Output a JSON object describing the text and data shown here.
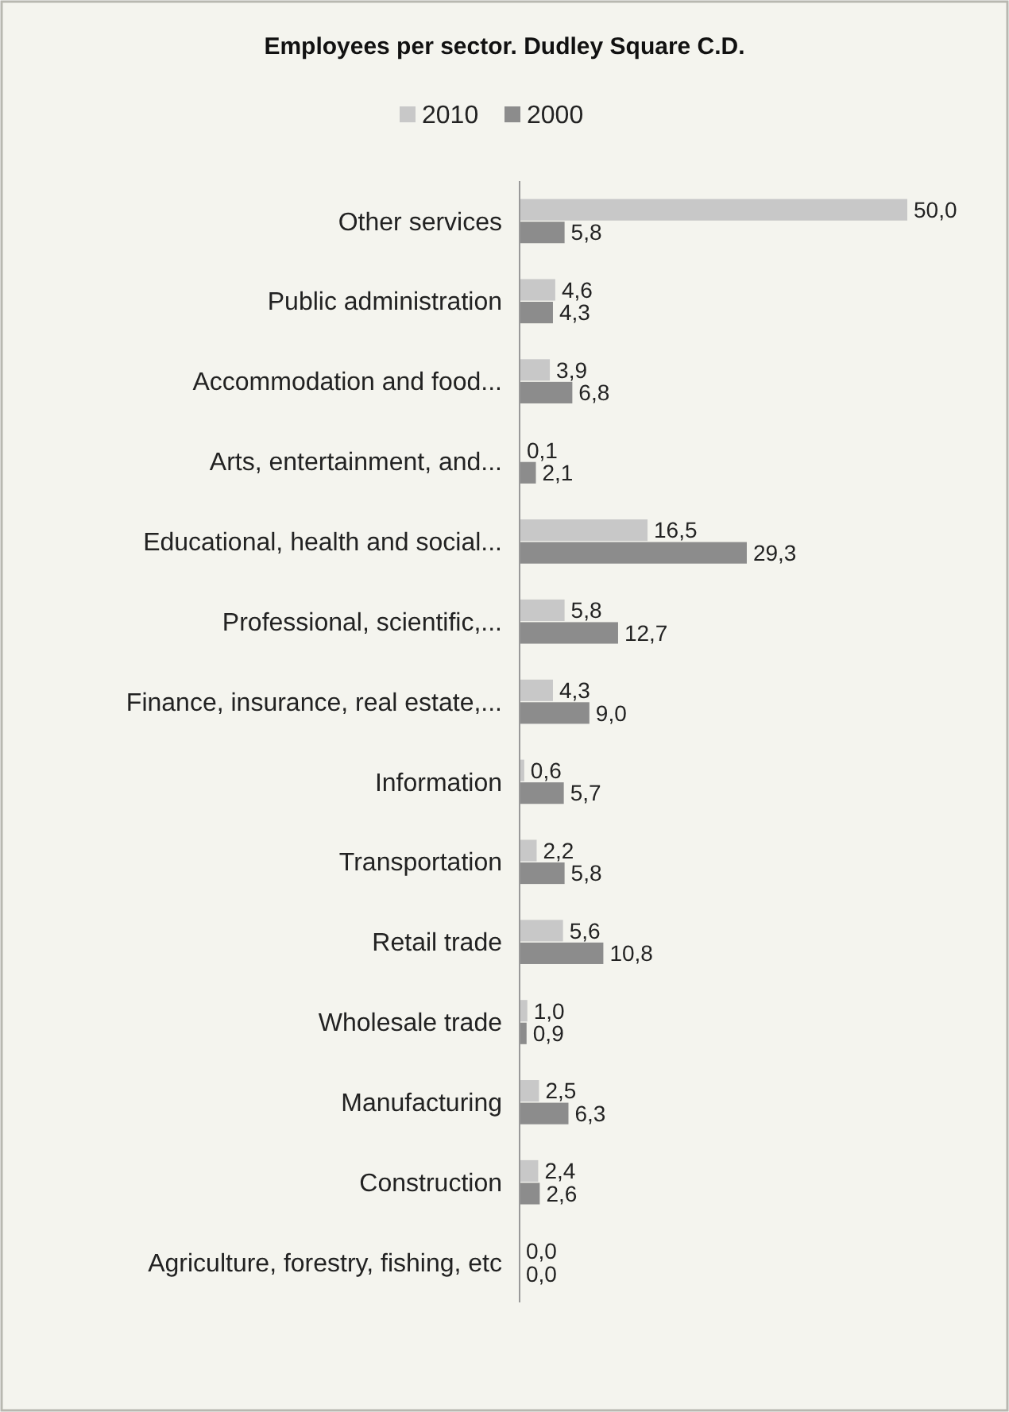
{
  "chart_data": {
    "type": "bar",
    "orientation": "horizontal",
    "title": "Employees per sector. Dudley Square C.D.",
    "legend": "top",
    "categories": [
      "Other services",
      "Public administration",
      "Accommodation and food...",
      "Arts, entertainment, and...",
      "Educational, health and social...",
      "Professional, scientific,...",
      "Finance, insurance, real estate,...",
      "Information",
      "Transportation",
      "Retail trade",
      "Wholesale trade",
      "Manufacturing",
      "Construction",
      "Agriculture, forestry, fishing, etc"
    ],
    "series": [
      {
        "name": "2010",
        "color": "#c8c8c8",
        "values": [
          50.0,
          4.6,
          3.9,
          0.1,
          16.5,
          5.8,
          4.3,
          0.6,
          2.2,
          5.6,
          1.0,
          2.5,
          2.4,
          0.0
        ],
        "value_labels": [
          "50,0",
          "4,6",
          "3,9",
          "0,1",
          "16,5",
          "5,8",
          "4,3",
          "0,6",
          "2,2",
          "5,6",
          "1,0",
          "2,5",
          "2,4",
          "0,0"
        ]
      },
      {
        "name": "2000",
        "color": "#8c8c8c",
        "values": [
          5.8,
          4.3,
          6.8,
          2.1,
          29.3,
          12.7,
          9.0,
          5.7,
          5.8,
          10.8,
          0.9,
          6.3,
          2.6,
          0.0
        ],
        "value_labels": [
          "5,8",
          "4,3",
          "6,8",
          "2,1",
          "29,3",
          "12,7",
          "9,0",
          "5,7",
          "5,8",
          "10,8",
          "0,9",
          "6,3",
          "2,6",
          "0,0"
        ]
      }
    ]
  }
}
